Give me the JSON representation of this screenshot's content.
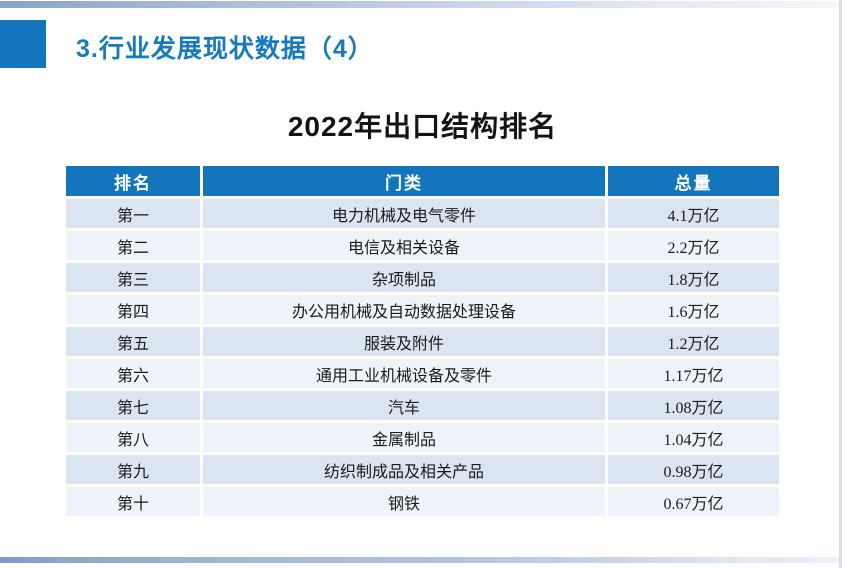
{
  "slide": {
    "heading": "3.行业发展现状数据（4）",
    "table_title": "2022年出口结构排名"
  },
  "table": {
    "columns": [
      "排名",
      "门类",
      "总量"
    ],
    "rows": [
      {
        "rank": "第一",
        "category": "电力机械及电气零件",
        "total": "4.1万亿"
      },
      {
        "rank": "第二",
        "category": "电信及相关设备",
        "total": "2.2万亿"
      },
      {
        "rank": "第三",
        "category": "杂项制品",
        "total": "1.8万亿"
      },
      {
        "rank": "第四",
        "category": "办公用机械及自动数据处理设备",
        "total": "1.6万亿"
      },
      {
        "rank": "第五",
        "category": "服装及附件",
        "total": "1.2万亿"
      },
      {
        "rank": "第六",
        "category": "通用工业机械设备及零件",
        "total": "1.17万亿"
      },
      {
        "rank": "第七",
        "category": "汽车",
        "total": "1.08万亿"
      },
      {
        "rank": "第八",
        "category": "金属制品",
        "total": "1.04万亿"
      },
      {
        "rank": "第九",
        "category": "纺织制成品及相关产品",
        "total": "0.98万亿"
      },
      {
        "rank": "第十",
        "category": "钢铁",
        "total": "0.67万亿"
      }
    ]
  },
  "colors": {
    "accent_blue": "#1376bc",
    "heading_text": "#1779be",
    "header_text": "#ffffff",
    "row_odd_bg": "#dbe5f1",
    "row_even_bg": "#eef3fa",
    "title_text": "#141414",
    "top_bar_left": "#8aa3c9",
    "bottom_bar_left": "#7e9bc6"
  }
}
